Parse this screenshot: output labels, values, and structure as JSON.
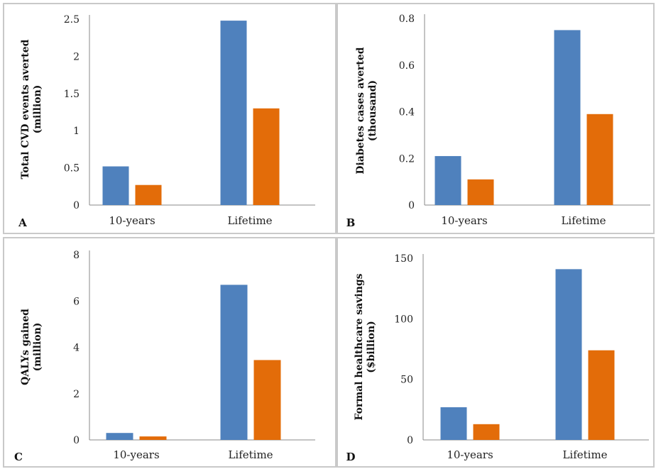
{
  "chart_data": [
    {
      "panel": "A",
      "type": "bar",
      "categories": [
        "10-years",
        "Lifetime"
      ],
      "ylabel": [
        "Total CVD events averted",
        "(million)"
      ],
      "ylim": [
        0,
        2.5
      ],
      "yticks": [
        "0",
        "0.5",
        "1",
        "1.5",
        "2",
        "2.5"
      ],
      "series": [
        {
          "values": [
            0.52,
            2.48
          ],
          "color": "#4f81bd"
        },
        {
          "values": [
            0.27,
            1.3
          ],
          "color": "#e36c09"
        }
      ]
    },
    {
      "panel": "B",
      "type": "bar",
      "categories": [
        "10-years",
        "Lifetime"
      ],
      "ylabel": [
        "Diabetes cases averted",
        "(thousand)"
      ],
      "ylim": [
        0,
        0.8
      ],
      "yticks": [
        "0",
        "0.2",
        "0.4",
        "0.6",
        "0.8"
      ],
      "series": [
        {
          "values": [
            0.21,
            0.75
          ],
          "color": "#4f81bd"
        },
        {
          "values": [
            0.11,
            0.39
          ],
          "color": "#e36c09"
        }
      ]
    },
    {
      "panel": "C",
      "type": "bar",
      "categories": [
        "10-years",
        "Lifetime"
      ],
      "ylabel": [
        "QALYs gained",
        "(million)"
      ],
      "ylim": [
        0,
        8
      ],
      "yticks": [
        "0",
        "2",
        "4",
        "6",
        "8"
      ],
      "series": [
        {
          "values": [
            0.3,
            6.7
          ],
          "color": "#4f81bd"
        },
        {
          "values": [
            0.15,
            3.45
          ],
          "color": "#e36c09"
        }
      ]
    },
    {
      "panel": "D",
      "type": "bar",
      "categories": [
        "10-years",
        "Lifetime"
      ],
      "ylabel": [
        "Formal healthcare savings",
        "($billion)"
      ],
      "ylim": [
        0,
        150
      ],
      "yticks": [
        "0",
        "50",
        "100",
        "150"
      ],
      "series": [
        {
          "values": [
            27,
            141
          ],
          "color": "#4f81bd"
        },
        {
          "values": [
            13,
            74
          ],
          "color": "#e36c09"
        }
      ]
    }
  ]
}
